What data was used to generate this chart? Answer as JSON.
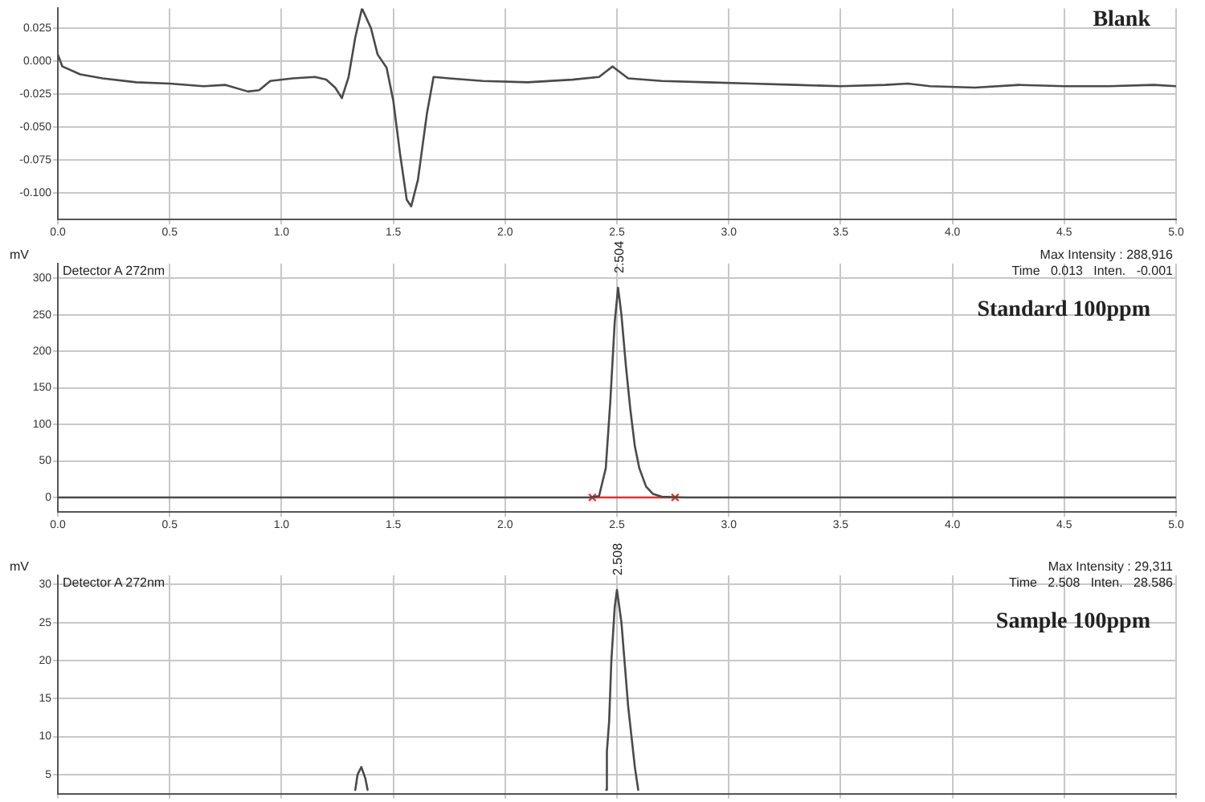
{
  "chart_data": [
    {
      "type": "line",
      "title": "Blank",
      "xlim": [
        0,
        5
      ],
      "ylim": [
        -0.12,
        0.04
      ],
      "xticks": [
        {
          "value": 0,
          "label": "0.0"
        },
        {
          "value": 0.5,
          "label": "0.5"
        },
        {
          "value": 1,
          "label": "1.0"
        },
        {
          "value": 1.5,
          "label": "1.5"
        },
        {
          "value": 2,
          "label": "2.0"
        },
        {
          "value": 2.5,
          "label": "2.5"
        },
        {
          "value": 3,
          "label": "3.0"
        },
        {
          "value": 3.5,
          "label": "3.5"
        },
        {
          "value": 4,
          "label": "4.0"
        },
        {
          "value": 4.5,
          "label": "4.5"
        },
        {
          "value": 5,
          "label": "5.0"
        }
      ],
      "yticks": [
        {
          "value": -0.1,
          "label": "-0.100"
        },
        {
          "value": -0.075,
          "label": "-0.075"
        },
        {
          "value": -0.05,
          "label": "-0.050"
        },
        {
          "value": -0.025,
          "label": "-0.025"
        },
        {
          "value": 0,
          "label": "0.000"
        },
        {
          "value": 0.025,
          "label": "0.025"
        }
      ],
      "grid": true,
      "legend": false,
      "series": [
        {
          "color": "#4a4a4a",
          "x": [
            0,
            0.02,
            0.1,
            0.2,
            0.35,
            0.5,
            0.65,
            0.75,
            0.85,
            0.9,
            0.95,
            1.05,
            1.15,
            1.2,
            1.24,
            1.27,
            1.3,
            1.33,
            1.36,
            1.4,
            1.43,
            1.47,
            1.5,
            1.53,
            1.56,
            1.58,
            1.61,
            1.65,
            1.68,
            1.75,
            1.9,
            2.1,
            2.3,
            2.42,
            2.48,
            2.55,
            2.7,
            2.9,
            3.1,
            3.3,
            3.5,
            3.7,
            3.8,
            3.9,
            4.1,
            4.3,
            4.5,
            4.7,
            4.9,
            5.0
          ],
          "values": [
            0.005,
            -0.004,
            -0.01,
            -0.013,
            -0.016,
            -0.017,
            -0.019,
            -0.018,
            -0.023,
            -0.022,
            -0.015,
            -0.013,
            -0.012,
            -0.014,
            -0.02,
            -0.028,
            -0.012,
            0.018,
            0.04,
            0.025,
            0.005,
            -0.005,
            -0.03,
            -0.07,
            -0.105,
            -0.11,
            -0.09,
            -0.04,
            -0.012,
            -0.013,
            -0.015,
            -0.016,
            -0.014,
            -0.012,
            -0.004,
            -0.013,
            -0.015,
            -0.016,
            -0.017,
            -0.018,
            -0.019,
            -0.018,
            -0.017,
            -0.019,
            -0.02,
            -0.018,
            -0.019,
            -0.019,
            -0.018,
            -0.019
          ]
        }
      ]
    },
    {
      "type": "line",
      "title": "Standard 100ppm",
      "ylabel": "mV",
      "xlim": [
        0,
        5
      ],
      "ylim": [
        -20,
        320
      ],
      "xticks": [
        {
          "value": 0,
          "label": "0.0"
        },
        {
          "value": 0.5,
          "label": "0.5"
        },
        {
          "value": 1,
          "label": "1.0"
        },
        {
          "value": 1.5,
          "label": "1.5"
        },
        {
          "value": 2,
          "label": "2.0"
        },
        {
          "value": 2.5,
          "label": "2.5"
        },
        {
          "value": 3,
          "label": "3.0"
        },
        {
          "value": 3.5,
          "label": "3.5"
        },
        {
          "value": 4,
          "label": "4.0"
        },
        {
          "value": 4.5,
          "label": "4.5"
        },
        {
          "value": 5,
          "label": "5.0"
        }
      ],
      "yticks": [
        0,
        50,
        100,
        150,
        200,
        250,
        300
      ],
      "grid": true,
      "legend": false,
      "annotations": [
        "Detector A 272nm",
        "Max Intensity : 288,916",
        "Time   0.013   Inten.   -0.001",
        {
          "text": "2.504",
          "x": 2.504,
          "y": 287
        }
      ],
      "series": [
        {
          "color": "#4a4a4a",
          "marker": "none",
          "x": [
            0,
            1,
            2,
            2.38,
            2.42,
            2.45,
            2.47,
            2.49,
            2.505,
            2.52,
            2.54,
            2.56,
            2.58,
            2.6,
            2.63,
            2.66,
            2.7,
            2.8,
            3.5,
            4.5,
            5
          ],
          "values": [
            0,
            0,
            0,
            0,
            2,
            40,
            130,
            240,
            287,
            250,
            180,
            120,
            70,
            40,
            15,
            5,
            1,
            0,
            0,
            0,
            0
          ]
        },
        {
          "color": "#e03030",
          "marker": "cross",
          "x": [
            2.39,
            2.76
          ],
          "values": [
            0,
            0
          ]
        }
      ]
    },
    {
      "type": "line",
      "title": "Sample 100ppm",
      "ylabel": "mV",
      "xlim": [
        0,
        5
      ],
      "ylim": [
        2.5,
        31.2
      ],
      "xticks": [
        0,
        0.5,
        1,
        1.5,
        2,
        2.5,
        3,
        3.5,
        4,
        4.5,
        5
      ],
      "yticks": [
        5,
        10,
        15,
        20,
        25,
        30
      ],
      "tick_labels": "y",
      "grid": true,
      "legend": false,
      "annotations": [
        "Detector A 272nm",
        "Max Intensity : 29,311",
        "Time   2.508   Inten.   28.586",
        {
          "text": "2.508",
          "x": 2.5,
          "y": 29.3
        }
      ],
      "series": [
        {
          "color": "#4a4a4a",
          "x": [
            1.33,
            1.34,
            1.357,
            1.375,
            1.385
          ],
          "values": [
            3,
            5,
            6,
            4.5,
            3
          ]
        },
        {
          "color": "#4a4a4a",
          "x": [
            2.452,
            2.455,
            2.465,
            2.475,
            2.49,
            2.5,
            2.52,
            2.55,
            2.58,
            2.595
          ],
          "values": [
            3,
            8,
            12,
            20,
            27,
            29.3,
            25,
            14,
            6,
            3
          ]
        }
      ]
    }
  ]
}
